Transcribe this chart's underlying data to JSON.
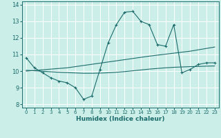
{
  "xlabel": "Humidex (Indice chaleur)",
  "xlim": [
    -0.5,
    23.5
  ],
  "ylim": [
    7.8,
    14.2
  ],
  "yticks": [
    8,
    9,
    10,
    11,
    12,
    13,
    14
  ],
  "xticks": [
    0,
    1,
    2,
    3,
    4,
    5,
    6,
    7,
    8,
    9,
    10,
    11,
    12,
    13,
    14,
    15,
    16,
    17,
    18,
    19,
    20,
    21,
    22,
    23
  ],
  "background_color": "#cceee8",
  "grid_color": "#ffffff",
  "line_color": "#1a6b6b",
  "line1_x": [
    0,
    1,
    2,
    3,
    4,
    5,
    6,
    7,
    8,
    9,
    10,
    11,
    12,
    13,
    14,
    15,
    16,
    17,
    18,
    19,
    20,
    21,
    22,
    23
  ],
  "line1_y": [
    10.8,
    10.2,
    9.9,
    9.6,
    9.4,
    9.3,
    9.0,
    8.3,
    8.5,
    10.1,
    11.7,
    12.8,
    13.55,
    13.6,
    13.0,
    12.8,
    11.6,
    11.5,
    12.8,
    9.9,
    10.1,
    10.4,
    10.5,
    10.5
  ],
  "line2_x": [
    0,
    1,
    2,
    3,
    4,
    5,
    6,
    7,
    8,
    9,
    10,
    11,
    12,
    13,
    14,
    15,
    16,
    17,
    18,
    19,
    20,
    21,
    22,
    23
  ],
  "line2_y": [
    10.05,
    10.02,
    9.99,
    9.96,
    9.93,
    9.91,
    9.89,
    9.87,
    9.87,
    9.88,
    9.9,
    9.93,
    9.97,
    10.02,
    10.07,
    10.12,
    10.16,
    10.2,
    10.23,
    10.25,
    10.27,
    10.28,
    10.3,
    10.31
  ],
  "line3_x": [
    0,
    5,
    10,
    15,
    20,
    23
  ],
  "line3_y": [
    10.0,
    10.2,
    10.55,
    10.9,
    11.2,
    11.45
  ]
}
